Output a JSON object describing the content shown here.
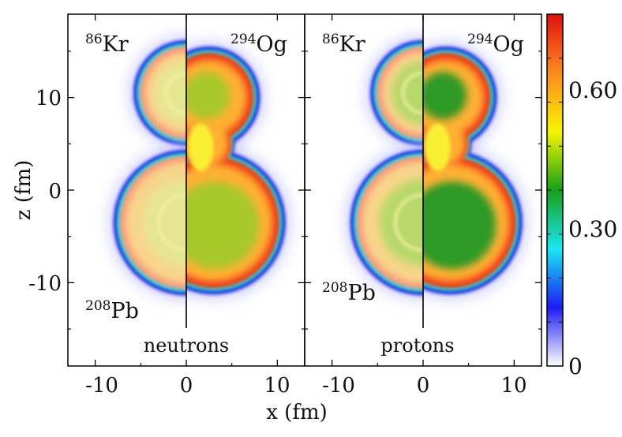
{
  "chart_data": {
    "type": "heatmap",
    "title": "",
    "xlabel": "x (fm)",
    "ylabel": "z (fm)",
    "xlim": [
      -13,
      13
    ],
    "ylim": [
      -19,
      19
    ],
    "x_ticks": [
      -10,
      0,
      10
    ],
    "y_ticks": [
      10,
      0,
      -10
    ],
    "x_tick_labels": [
      "-10",
      "0",
      "10"
    ],
    "y_tick_labels": [
      "10",
      "0",
      "-10"
    ],
    "colorbar": {
      "range": [
        0,
        0.8
      ],
      "ticks": [
        0,
        0.3,
        0.6
      ],
      "tick_labels": [
        "0",
        "0.30",
        "0.60"
      ],
      "colors": [
        "#ffffff",
        "#1c1cf5",
        "#18e8f0",
        "#18a018",
        "#f5f500",
        "#ff8a1e",
        "#e01010"
      ]
    },
    "panels": [
      {
        "label": "neutrons",
        "left_half_label": {
          "mass": "86",
          "symbol": "Kr",
          "extra_mass": "208",
          "extra_symbol": "Pb"
        },
        "right_half_label": {
          "mass": "294",
          "symbol": "Og"
        }
      },
      {
        "label": "protons",
        "left_half_label": {
          "mass": "86",
          "symbol": "Kr",
          "extra_mass": "208",
          "extra_symbol": "Pb"
        },
        "right_half_label": {
          "mass": "294",
          "symbol": "Og"
        }
      }
    ],
    "features": {
      "kr_center_z": 10.5,
      "kr_radius_fm": 5.8,
      "pb_center_z": -3.5,
      "pb_radius_fm": 8.0,
      "og_upper_center": [
        2.5,
        10.0
      ],
      "og_lower_center": [
        3.0,
        -3.5
      ],
      "og_neck_z": 5.0,
      "interior_density": 0.62,
      "surface_density": 0.75
    }
  }
}
